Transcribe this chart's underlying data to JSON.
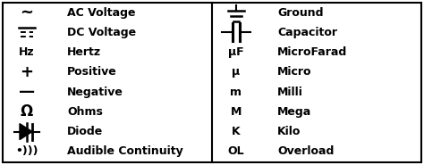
{
  "left_labels": [
    "AC Voltage",
    "DC Voltage",
    "Hertz",
    "Positive",
    "Negative",
    "Ohms",
    "Diode",
    "Audible Continuity"
  ],
  "right_labels": [
    "Ground",
    "Capacitor",
    "MicroFarad",
    "Micro",
    "Milli",
    "Mega",
    "Kilo",
    "Overload"
  ],
  "right_text_symbols": [
    "μF",
    "μ",
    "m",
    "M",
    "K",
    "OL"
  ],
  "bg_color": "#ffffff",
  "border_color": "#000000",
  "text_color": "#000000",
  "font_size": 9,
  "sym_font_size": 10
}
